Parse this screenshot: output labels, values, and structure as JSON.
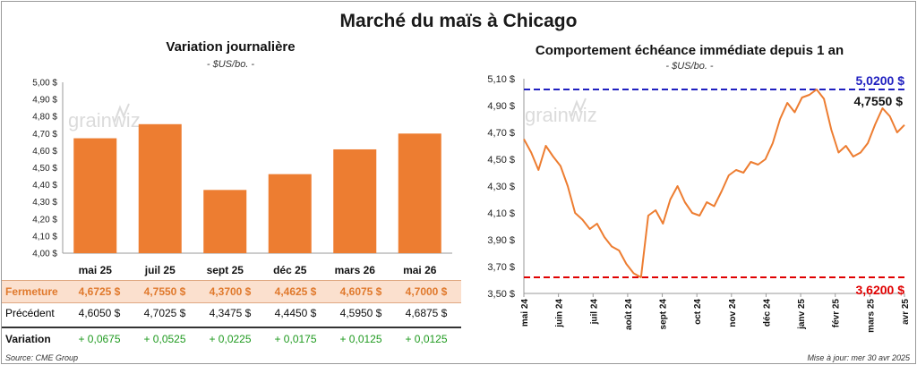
{
  "header": {
    "title": "Marché du maïs à Chicago"
  },
  "left": {
    "title": "Variation journalière",
    "unit": "- $US/bo. -"
  },
  "right": {
    "title": "Comportement échéance immédiate depuis 1 an",
    "unit": "- $US/bo. -"
  },
  "watermark": "grainwiz",
  "table": {
    "rows": [
      {
        "label": "Fermeture",
        "values": [
          "4,6725  $",
          "4,7550  $",
          "4,3700  $",
          "4,4625  $",
          "4,6075  $",
          "4,7000  $"
        ]
      },
      {
        "label": "Précédent",
        "values": [
          "4,6050  $",
          "4,7025  $",
          "4,3475  $",
          "4,4450  $",
          "4,5950  $",
          "4,6875  $"
        ]
      },
      {
        "label": "Variation",
        "values": [
          "+ 0,0675",
          "+ 0,0525",
          "+ 0,0225",
          "+ 0,0175",
          "+ 0,0125",
          "+ 0,0125"
        ]
      }
    ]
  },
  "footer": {
    "source": "Source: CME Group",
    "updated": "Mise à jour: mer 30 avr 2025"
  },
  "colors": {
    "bar": "#ed7d31",
    "line": "#ed7d31",
    "high": "#2020c0",
    "low": "#e00000",
    "gain": "#1f9a1f"
  },
  "chart_data": [
    {
      "type": "bar",
      "title": "Variation journalière",
      "categories": [
        "mai 25",
        "juil 25",
        "sept 25",
        "déc 25",
        "mars 26",
        "mai 26"
      ],
      "values": [
        4.6725,
        4.755,
        4.37,
        4.4625,
        4.6075,
        4.7
      ],
      "ylim": [
        4.0,
        5.0
      ],
      "yticks": [
        "4,00 $",
        "4,10 $",
        "4,20 $",
        "4,30 $",
        "4,40 $",
        "4,50 $",
        "4,60 $",
        "4,70 $",
        "4,80 $",
        "4,90 $",
        "5,00 $"
      ],
      "grid": false
    },
    {
      "type": "line",
      "title": "Comportement échéance immédiate depuis 1 an",
      "x_range": [
        "2024-05-01",
        "2025-04-30"
      ],
      "xticks": [
        "mai 24",
        "juin 24",
        "juil 24",
        "août 24",
        "sept 24",
        "oct 24",
        "nov 24",
        "déc 24",
        "janv 25",
        "févr 25",
        "mars 25",
        "avr 25"
      ],
      "ylim": [
        3.5,
        5.1
      ],
      "yticks": [
        "3,50 $",
        "3,70 $",
        "3,90 $",
        "4,10 $",
        "4,30 $",
        "4,50 $",
        "4,70 $",
        "4,90 $",
        "5,10 $"
      ],
      "series": [
        {
          "x": [
            "2024-05-01",
            "2024-05-08",
            "2024-05-15",
            "2024-05-22",
            "2024-05-29",
            "2024-06-05",
            "2024-06-12",
            "2024-06-19",
            "2024-06-26",
            "2024-07-03",
            "2024-07-10",
            "2024-07-17",
            "2024-07-24",
            "2024-07-31",
            "2024-08-07",
            "2024-08-14",
            "2024-08-21",
            "2024-08-28",
            "2024-09-04",
            "2024-09-11",
            "2024-09-18",
            "2024-09-25",
            "2024-10-02",
            "2024-10-09",
            "2024-10-16",
            "2024-10-23",
            "2024-10-30",
            "2024-11-06",
            "2024-11-13",
            "2024-11-20",
            "2024-11-27",
            "2024-12-04",
            "2024-12-11",
            "2024-12-18",
            "2024-12-25",
            "2025-01-01",
            "2025-01-08",
            "2025-01-15",
            "2025-01-22",
            "2025-01-29",
            "2025-02-05",
            "2025-02-12",
            "2025-02-19",
            "2025-02-26",
            "2025-03-05",
            "2025-03-12",
            "2025-03-19",
            "2025-03-26",
            "2025-04-02",
            "2025-04-09",
            "2025-04-16",
            "2025-04-23",
            "2025-04-30"
          ],
          "values": [
            4.65,
            4.55,
            4.42,
            4.6,
            4.52,
            4.45,
            4.3,
            4.1,
            4.05,
            3.98,
            4.02,
            3.92,
            3.85,
            3.82,
            3.72,
            3.65,
            3.62,
            4.08,
            4.12,
            4.02,
            4.2,
            4.3,
            4.18,
            4.1,
            4.08,
            4.18,
            4.15,
            4.26,
            4.38,
            4.42,
            4.4,
            4.48,
            4.46,
            4.5,
            4.62,
            4.8,
            4.92,
            4.85,
            4.96,
            4.98,
            5.02,
            4.95,
            4.72,
            4.55,
            4.6,
            4.52,
            4.55,
            4.62,
            4.76,
            4.88,
            4.82,
            4.7,
            4.755
          ]
        }
      ],
      "reference_lines": [
        {
          "value": 5.02,
          "label": "5,0200 $"
        },
        {
          "value": 3.62,
          "label": "3,6200 $"
        }
      ],
      "last_label": "4,7550 $"
    }
  ]
}
